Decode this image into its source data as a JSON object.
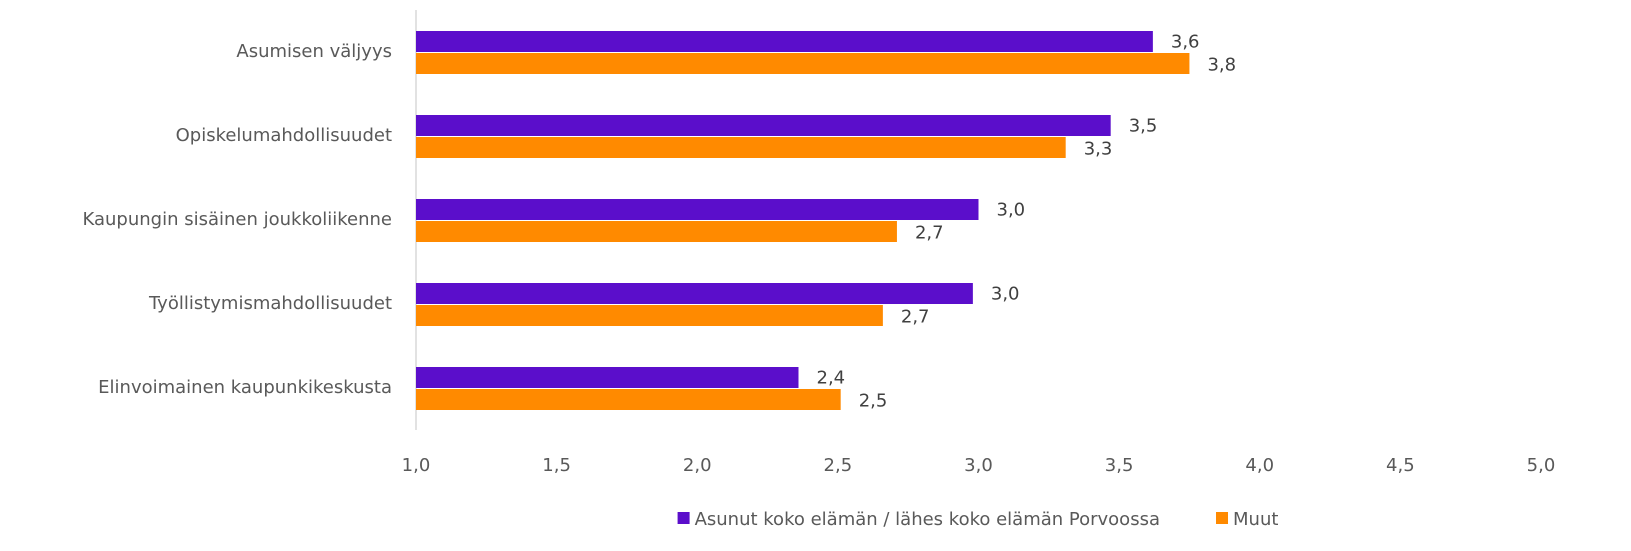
{
  "chart_data": {
    "type": "hbar",
    "categories": [
      "Asumisen väljyys",
      "Opiskelumahdollisuudet",
      "Kaupungin sisäinen joukkoliikenne",
      "Työllistymismahdollisuudet",
      "Elinvoimainen kaupunkikeskusta"
    ],
    "series": [
      {
        "name": "Asunut koko elämän / lähes koko elämän Porvoossa",
        "color": "#5b0ecb",
        "values": [
          3.62,
          3.47,
          3.0,
          2.98,
          2.36
        ],
        "value_labels": [
          "3,6",
          "3,5",
          "3,0",
          "3,0",
          "2,4"
        ]
      },
      {
        "name": "Muut",
        "color": "#ff8a00",
        "values": [
          3.75,
          3.31,
          2.71,
          2.66,
          2.51
        ],
        "value_labels": [
          "3,8",
          "3,3",
          "2,7",
          "2,7",
          "2,5"
        ]
      }
    ],
    "xlim": [
      1,
      5
    ],
    "xticks": [
      {
        "value": 1,
        "label": "1,0"
      },
      {
        "value": 1.5,
        "label": "1,5"
      },
      {
        "value": 2,
        "label": "2,0"
      },
      {
        "value": 2.5,
        "label": "2,5"
      },
      {
        "value": 3,
        "label": "3,0"
      },
      {
        "value": 3.5,
        "label": "3,5"
      },
      {
        "value": 4,
        "label": "4,0"
      },
      {
        "value": 4.5,
        "label": "4,5"
      },
      {
        "value": 5,
        "label": "5,0"
      }
    ],
    "legend": "bottom"
  }
}
